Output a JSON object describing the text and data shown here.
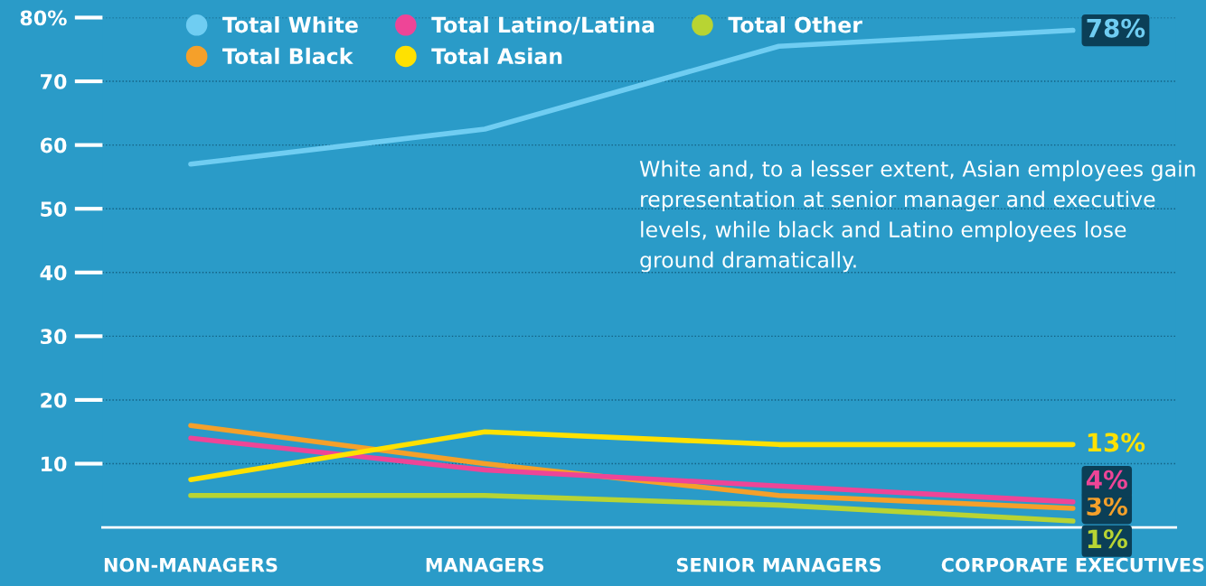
{
  "chart_data": {
    "type": "line",
    "categories": [
      "NON-MANAGERS",
      "MANAGERS",
      "SENIOR MANAGERS",
      "CORPORATE EXECUTIVES"
    ],
    "series": [
      {
        "name": "Total White",
        "color": "#6fcdf2",
        "values": [
          57,
          62.5,
          75.5,
          78
        ],
        "value_labels": [
          null,
          null,
          null,
          "78%"
        ]
      },
      {
        "name": "Total Black",
        "color": "#f5a02a",
        "values": [
          16,
          10,
          5,
          3
        ],
        "value_labels": [
          null,
          null,
          null,
          "3%"
        ]
      },
      {
        "name": "Total Latino/Latina",
        "color": "#ee4597",
        "values": [
          14,
          9,
          6.5,
          4
        ],
        "value_labels": [
          null,
          null,
          null,
          "4%"
        ]
      },
      {
        "name": "Total Asian",
        "color": "#ffe100",
        "values": [
          7.5,
          15,
          13,
          13
        ],
        "value_labels": [
          null,
          null,
          null,
          "13%"
        ]
      },
      {
        "name": "Total Other",
        "color": "#b8d433",
        "values": [
          5,
          5,
          3.5,
          1
        ],
        "value_labels": [
          null,
          null,
          null,
          "1%"
        ]
      }
    ],
    "ylim": [
      0,
      80
    ],
    "yticks": [
      {
        "value": 10,
        "label": "10"
      },
      {
        "value": 20,
        "label": "20"
      },
      {
        "value": 30,
        "label": "30"
      },
      {
        "value": 40,
        "label": "40"
      },
      {
        "value": 50,
        "label": "50"
      },
      {
        "value": 60,
        "label": "60"
      },
      {
        "value": 70,
        "label": "70"
      },
      {
        "value": 80,
        "label": "80%"
      }
    ],
    "grid": "y",
    "legend": "top left",
    "marker": "none",
    "line_style": "solid",
    "annotations": [
      "White and, to a lesser extent, Asian employees gain representation at senior manager and executive levels, while black and Latino employees lose ground dramatically."
    ]
  }
}
